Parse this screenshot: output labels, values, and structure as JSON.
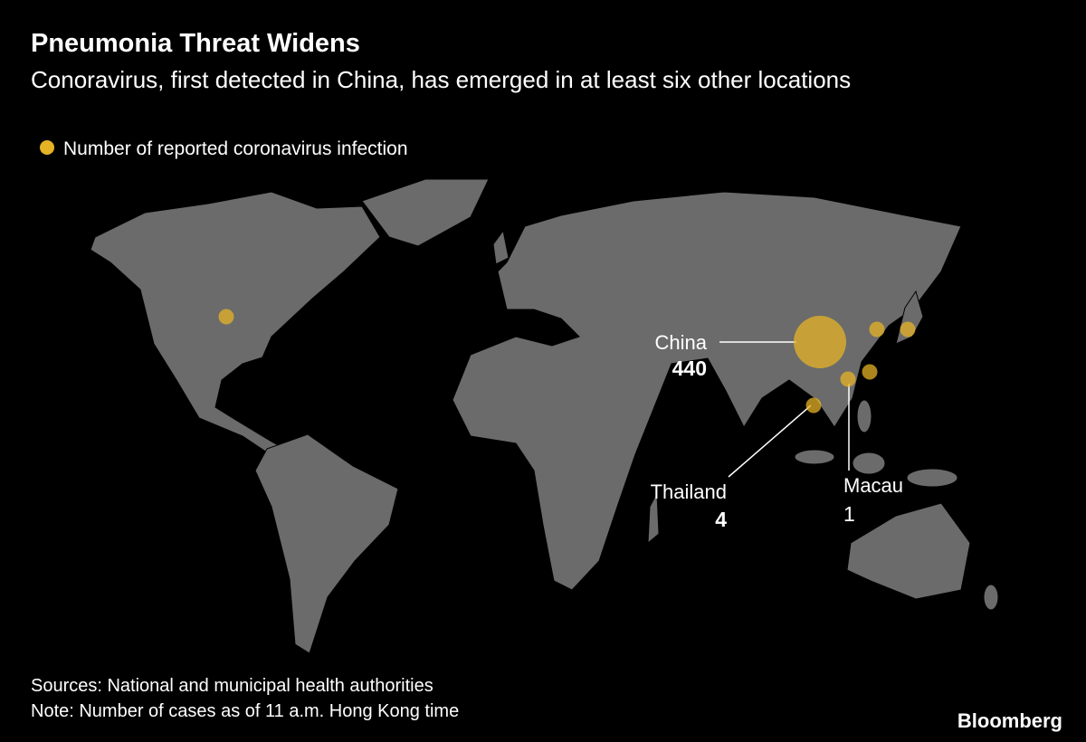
{
  "header": {
    "title": "Pneumonia Threat Widens",
    "subtitle": "Conoravirus, first detected in China, has emerged in at least six other locations"
  },
  "legend": {
    "label": "Number of reported coronavirus infection",
    "color": "#e6b325"
  },
  "bubbles": [
    {
      "label": "China",
      "value": 440
    },
    {
      "label": "Thailand",
      "value": 4
    },
    {
      "label": "Macau",
      "value": 1
    },
    {
      "value": 1
    },
    {
      "value": 1
    },
    {
      "value": 1
    },
    {
      "value": 1
    }
  ],
  "footer": {
    "sources": "Sources: National and municipal health authorities",
    "note": "Note: Number of cases as of 11 a.m. Hong Kong time",
    "logo": "Bloomberg"
  }
}
